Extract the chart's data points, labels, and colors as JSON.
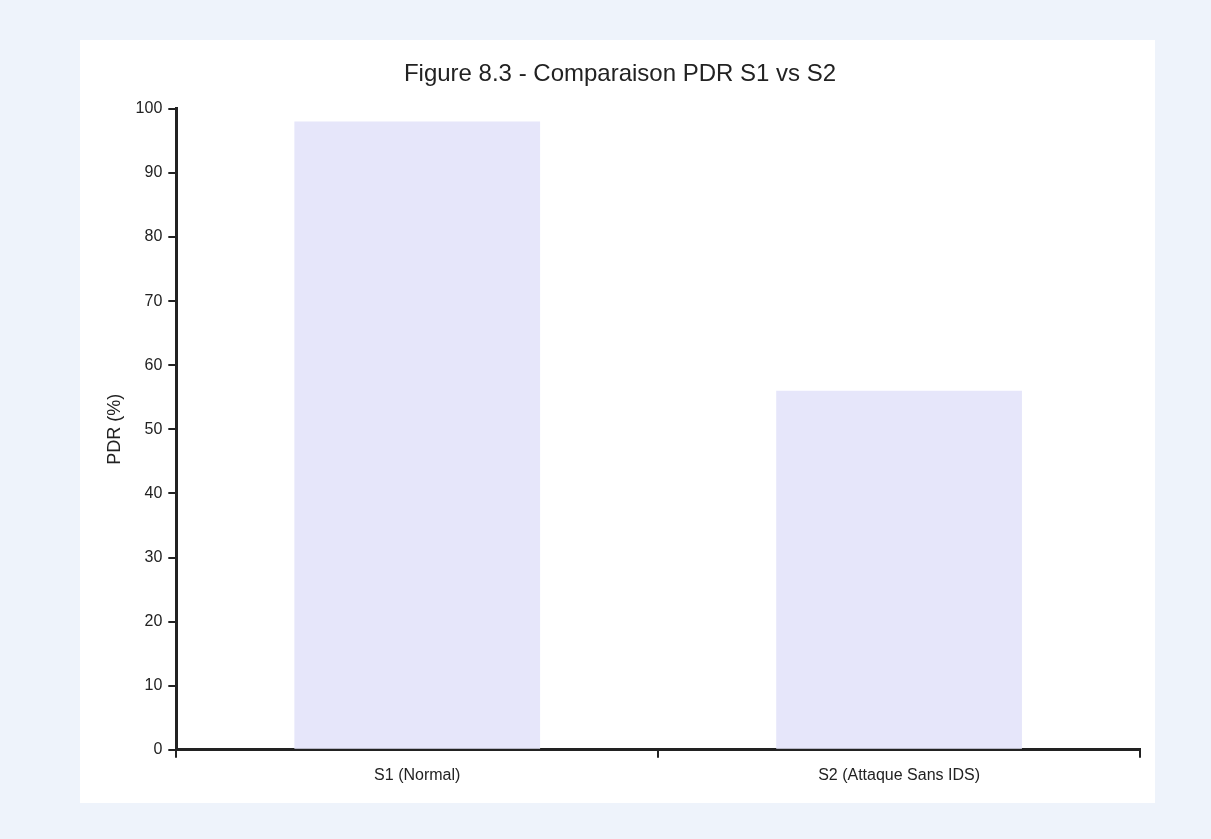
{
  "chart_data": {
    "type": "bar",
    "title": "Figure 8.3 - Comparaison PDR S1 vs S2",
    "ylabel": "PDR (%)",
    "categories": [
      "S1 (Normal)",
      "S2 (Attaque Sans IDS)"
    ],
    "values": [
      98,
      56
    ],
    "color": "#e6e6fa",
    "ylim": [
      0,
      100
    ],
    "yticks": [
      0,
      10,
      20,
      30,
      40,
      50,
      60,
      70,
      80,
      90,
      100
    ],
    "grid": false,
    "legend": false
  }
}
